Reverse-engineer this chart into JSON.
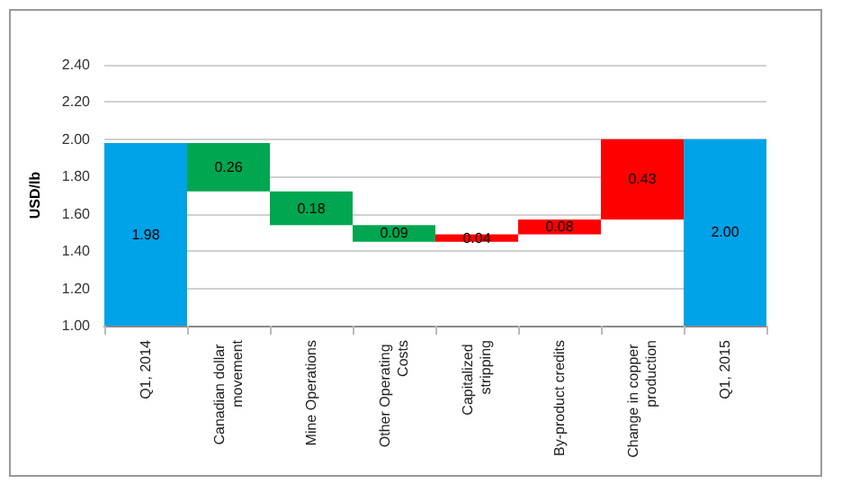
{
  "chart_data": {
    "type": "bar",
    "ylabel": "USD/lb",
    "categories": [
      "Q1, 2014",
      "Canadian dollar movement",
      "Mine Operations",
      "Other Operating Costs",
      "Capitalized stripping",
      "By-product credits",
      "Change in copper production",
      "Q1, 2015"
    ],
    "base": [
      1.0,
      1.72,
      1.54,
      1.45,
      1.45,
      1.49,
      1.57,
      1.0
    ],
    "values": [
      0.98,
      0.26,
      0.18,
      0.09,
      0.04,
      0.08,
      0.43,
      1.0
    ],
    "value_labels": [
      "1.98",
      "0.26",
      "0.18",
      "0.09",
      "0.04",
      "0.08",
      "0.43",
      "2.00"
    ],
    "colors": [
      "#00a2e8",
      "#00a650",
      "#00a650",
      "#00a650",
      "#ff0000",
      "#ff0000",
      "#ff0000",
      "#00a2e8"
    ],
    "ylim": [
      1.0,
      2.4
    ],
    "yticks": [
      {
        "value": 1,
        "label": "1.00"
      },
      {
        "value": 1.2,
        "label": "1.20"
      },
      {
        "value": 1.4,
        "label": "1.40"
      },
      {
        "value": 1.6,
        "label": "1.60"
      },
      {
        "value": 1.8,
        "label": "1.80"
      },
      {
        "value": 2,
        "label": "2.00"
      },
      {
        "value": 2.2,
        "label": "2.20"
      },
      {
        "value": 2.4,
        "label": "2.40"
      }
    ],
    "grid": "y"
  }
}
